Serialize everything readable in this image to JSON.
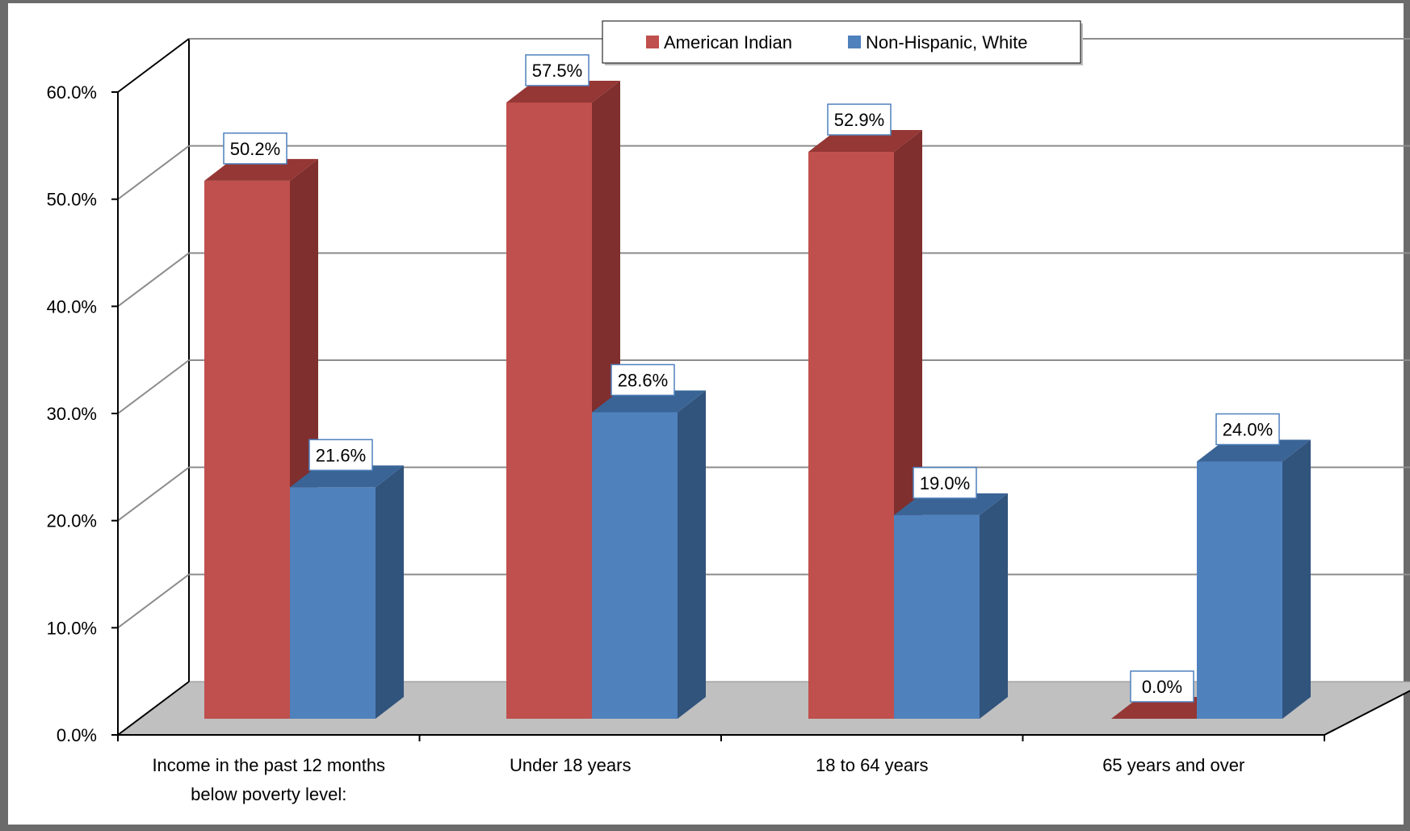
{
  "chart_data": {
    "type": "bar",
    "style": "3d-clustered-column",
    "title": "",
    "xlabel": "",
    "ylabel": "",
    "ylim": [
      0,
      60
    ],
    "y_ticks": [
      "0.0%",
      "10.0%",
      "20.0%",
      "30.0%",
      "40.0%",
      "50.0%",
      "60.0%"
    ],
    "grid": true,
    "legend_position": "top-center",
    "categories": [
      [
        "Income in the past 12 months",
        "below poverty level:"
      ],
      [
        "Under 18 years"
      ],
      [
        "18 to 64 years"
      ],
      [
        "65 years and over"
      ]
    ],
    "series": [
      {
        "name": "American Indian",
        "color": "#C0504D",
        "side_color": "#7F2F2E",
        "top_color": "#953735",
        "values": [
          50.2,
          57.5,
          52.9,
          0.0
        ],
        "labels": [
          "50.2%",
          "57.5%",
          "52.9%",
          "0.0%"
        ]
      },
      {
        "name": "Non-Hispanic, White",
        "color": "#4F81BD",
        "side_color": "#31547D",
        "top_color": "#3A6496",
        "values": [
          21.6,
          28.6,
          19.0,
          24.0
        ],
        "labels": [
          "21.6%",
          "28.6%",
          "19.0%",
          "24.0%"
        ]
      }
    ]
  }
}
